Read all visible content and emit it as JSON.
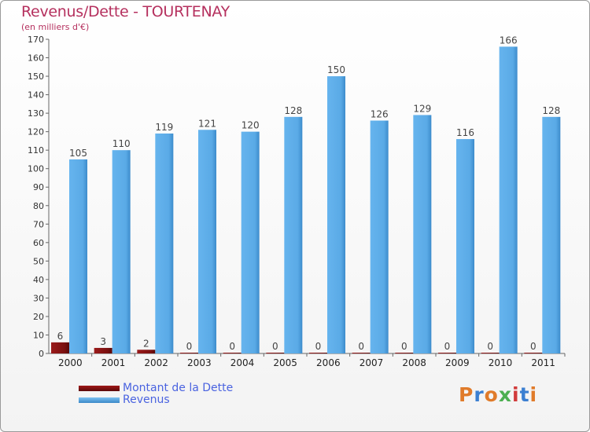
{
  "header": {
    "title": "Revenus/Dette - TOURTENAY",
    "subtitle": "(en milliers d'€)"
  },
  "legend": {
    "items": [
      {
        "label": "Montant de la Dette",
        "color": "#7a1010"
      },
      {
        "label": "Revenus",
        "color": "#5aaae6"
      }
    ]
  },
  "logo": {
    "text": "Proxiti",
    "colors": [
      "#e07b2a",
      "#3b7fd1",
      "#e07b2a",
      "#4caf50",
      "#d13b3b",
      "#3b7fd1",
      "#e07b2a"
    ]
  },
  "chart_data": {
    "type": "bar",
    "title": "Revenus/Dette - TOURTENAY",
    "ylabel": "(en milliers d'€)",
    "xlabel": "",
    "ylim": [
      0,
      170
    ],
    "yticks": [
      0,
      10,
      20,
      30,
      40,
      50,
      60,
      70,
      80,
      90,
      100,
      110,
      120,
      130,
      140,
      150,
      160,
      170
    ],
    "categories": [
      "2000",
      "2001",
      "2002",
      "2003",
      "2004",
      "2005",
      "2006",
      "2007",
      "2008",
      "2009",
      "2010",
      "2011"
    ],
    "series": [
      {
        "name": "Montant de la Dette",
        "color": "#7a1010",
        "values": [
          6,
          3,
          2,
          0,
          0,
          0,
          0,
          0,
          0,
          0,
          0,
          0
        ]
      },
      {
        "name": "Revenus",
        "color": "#5aaae6",
        "values": [
          105,
          110,
          119,
          121,
          120,
          128,
          150,
          126,
          129,
          116,
          166,
          128
        ]
      }
    ],
    "grid": false,
    "legend": "bottom-left"
  }
}
